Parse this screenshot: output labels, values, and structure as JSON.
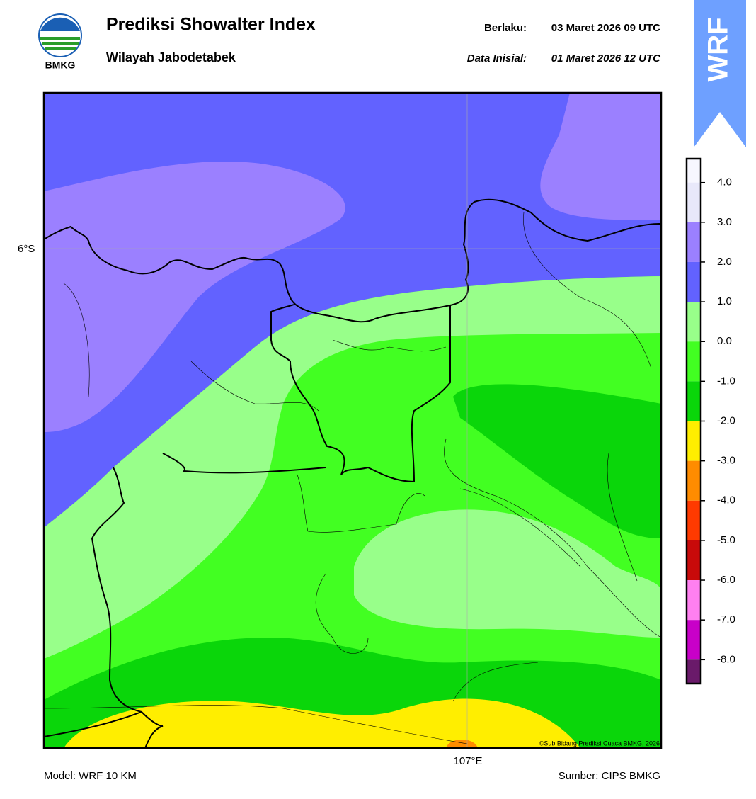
{
  "header": {
    "logo_text": "BMKG",
    "title": "Prediksi Showalter Index",
    "subtitle": "Wilayah Jabodetabek",
    "valid_label": "Berlaku:",
    "valid_time": "03 Maret 2026 09 UTC",
    "init_label": "Data Inisial:",
    "init_time": "01 Maret 2026 12 UTC",
    "model_badge": "WRF"
  },
  "map": {
    "lat_labels": [
      "6°S"
    ],
    "lon_labels": [
      "107°E"
    ],
    "credit": "©Sub Bidang Prediksi Cuaca BMKG, 2026"
  },
  "colorbar": {
    "ylim": [
      -8.6,
      4.6
    ],
    "yticks": [
      {
        "value": 4,
        "label": "4.0"
      },
      {
        "value": 3,
        "label": "3.0"
      },
      {
        "value": 2,
        "label": "2.0"
      },
      {
        "value": 1,
        "label": "1.0"
      },
      {
        "value": 0,
        "label": "0.0"
      },
      {
        "value": -1,
        "label": "-1.0"
      },
      {
        "value": -2,
        "label": "-2.0"
      },
      {
        "value": -3,
        "label": "-3.0"
      },
      {
        "value": -4,
        "label": "-4.0"
      },
      {
        "value": -5,
        "label": "-5.0"
      },
      {
        "value": -6,
        "label": "-6.0"
      },
      {
        "value": -7,
        "label": "-7.0"
      },
      {
        "value": -8,
        "label": "-8.0"
      }
    ],
    "colors": [
      "#f7f7ff",
      "#e8e8fa",
      "#9b80ff",
      "#6262ff",
      "#98ff8a",
      "#42ff22",
      "#0ad60a",
      "#ffee00",
      "#ff8c00",
      "#ff3a00",
      "#c80a0a",
      "#ff80f0",
      "#c800c8",
      "#6a1a6a"
    ]
  },
  "footer": {
    "model": "Model: WRF 10 KM",
    "source": "Sumber: CIPS BMKG"
  }
}
